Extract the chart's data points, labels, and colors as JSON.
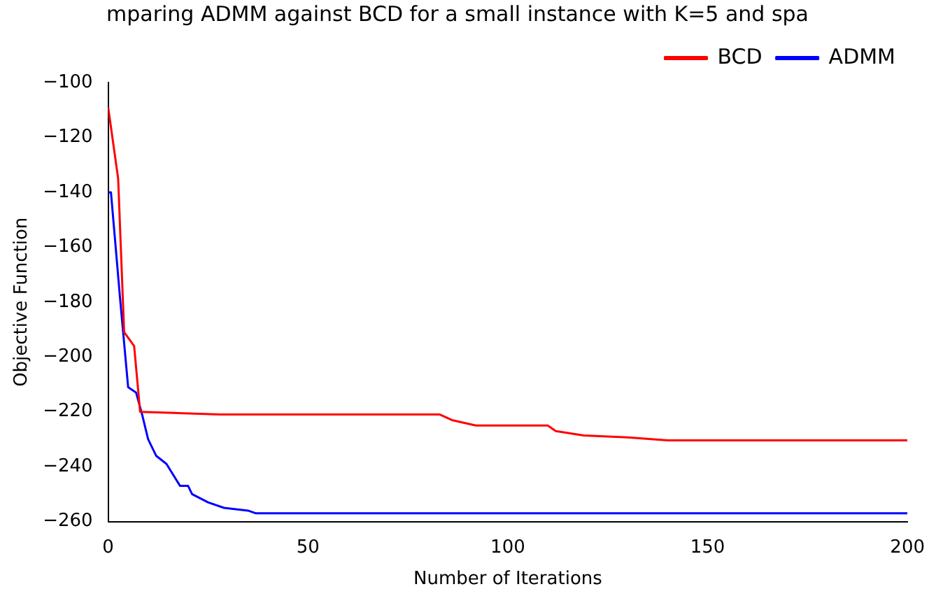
{
  "chart_data": {
    "type": "line",
    "title": "mparing ADMM against BCD for a small instance with K=5 and spa",
    "xlabel": "Number of Iterations",
    "ylabel": "Objective Function",
    "xlim": [
      0,
      200
    ],
    "xticks": [
      0,
      50,
      100,
      150,
      200
    ],
    "ylim": [
      -260,
      -100
    ],
    "yticks": [
      -260,
      -240,
      -220,
      -200,
      -180,
      -160,
      -140,
      -120,
      -100
    ],
    "grid": false,
    "legend": "top right",
    "marker": "none",
    "line_style": "solid",
    "series": [
      {
        "name": "BCD",
        "color": "#ff0000",
        "x": [
          0,
          2.5,
          4,
          6.5,
          8,
          28,
          83,
          86,
          92,
          110,
          112,
          119,
          130,
          140,
          200
        ],
        "values": [
          -109,
          -135,
          -191,
          -196,
          -220,
          -221,
          -221,
          -223,
          -225,
          -225,
          -227,
          -228.6,
          -229.3,
          -230.4,
          -230.4
        ]
      },
      {
        "name": "ADMM",
        "color": "#0000ff",
        "x": [
          0,
          0.7,
          3,
          5,
          7,
          8.5,
          10,
          12,
          14.6,
          18,
          20,
          21,
          25,
          29,
          35,
          37,
          200
        ],
        "values": [
          -140,
          -140,
          -179,
          -211,
          -213,
          -221,
          -230,
          -236,
          -239,
          -247,
          -247,
          -250,
          -253,
          -255,
          -256,
          -257,
          -257
        ]
      }
    ]
  }
}
